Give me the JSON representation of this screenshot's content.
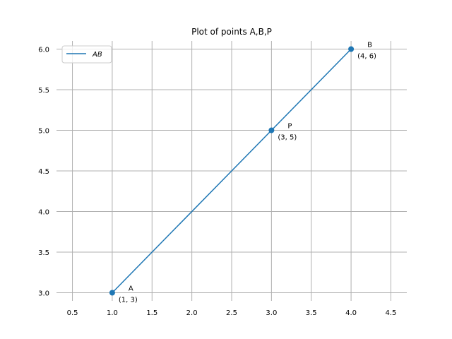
{
  "chart_data": {
    "type": "scatter",
    "title": "Plot of points A,B,P",
    "xlabel": "",
    "ylabel": "",
    "xlim": [
      0.3,
      4.7
    ],
    "ylim": [
      2.9,
      6.1
    ],
    "xticks": [
      0.5,
      1.0,
      1.5,
      2.0,
      2.5,
      3.0,
      3.5,
      4.0,
      4.5
    ],
    "xtick_labels": [
      "0.5",
      "1.0",
      "1.5",
      "2.0",
      "2.5",
      "3.0",
      "3.5",
      "4.0",
      "4.5"
    ],
    "yticks": [
      3.0,
      3.5,
      4.0,
      4.5,
      5.0,
      5.5,
      6.0
    ],
    "ytick_labels": [
      "3.0",
      "3.5",
      "4.0",
      "4.5",
      "5.0",
      "5.5",
      "6.0"
    ],
    "grid": true,
    "legend": {
      "position": "top-left",
      "entries": [
        "AB"
      ]
    },
    "line": {
      "name": "AB",
      "x": [
        1,
        4
      ],
      "y": [
        3,
        6
      ],
      "color": "#1f77b4"
    },
    "points": [
      {
        "label": "A",
        "coord": "(1, 3)",
        "x": 1,
        "y": 3
      },
      {
        "label": "P",
        "coord": "(3, 5)",
        "x": 3,
        "y": 5
      },
      {
        "label": "B",
        "coord": "(4, 6)",
        "x": 4,
        "y": 6
      }
    ],
    "colors": {
      "series": "#1f77b4",
      "grid": "#b0b0b0"
    }
  }
}
